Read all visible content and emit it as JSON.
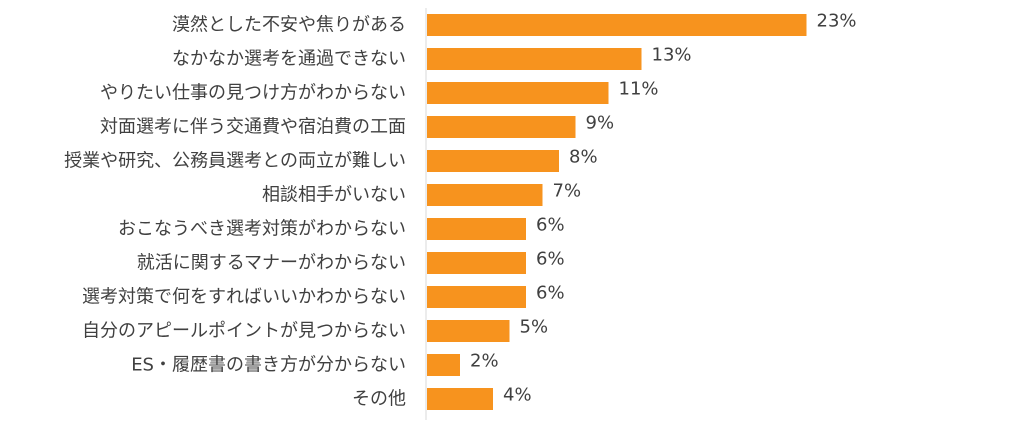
{
  "chart_data": {
    "type": "bar",
    "orientation": "horizontal",
    "categories": [
      "漠然とした不安や焦りがある",
      "なかなか選考を通過できない",
      "やりたい仕事の見つけ方がわからない",
      "対面選考に伴う交通費や宿泊費の工面",
      "授業や研究、公務員選考との両立が難しい",
      "相談相手がいない",
      "おこなうべき選考対策がわからない",
      "就活に関するマナーがわからない",
      "選考対策で何をすればいいかわからない",
      "自分のアピールポイントが見つからない",
      "ES・履歴書の書き方が分からない",
      "その他"
    ],
    "values": [
      23,
      13,
      11,
      9,
      8,
      7,
      6,
      6,
      6,
      5,
      2,
      4
    ],
    "value_labels": [
      "23%",
      "13%",
      "11%",
      "9%",
      "8%",
      "7%",
      "6%",
      "6%",
      "6%",
      "5%",
      "2%",
      "4%"
    ],
    "unit": "%",
    "xlim": [
      0,
      25
    ],
    "grid": false,
    "legend": "none",
    "bar_color": "#F7931E"
  }
}
